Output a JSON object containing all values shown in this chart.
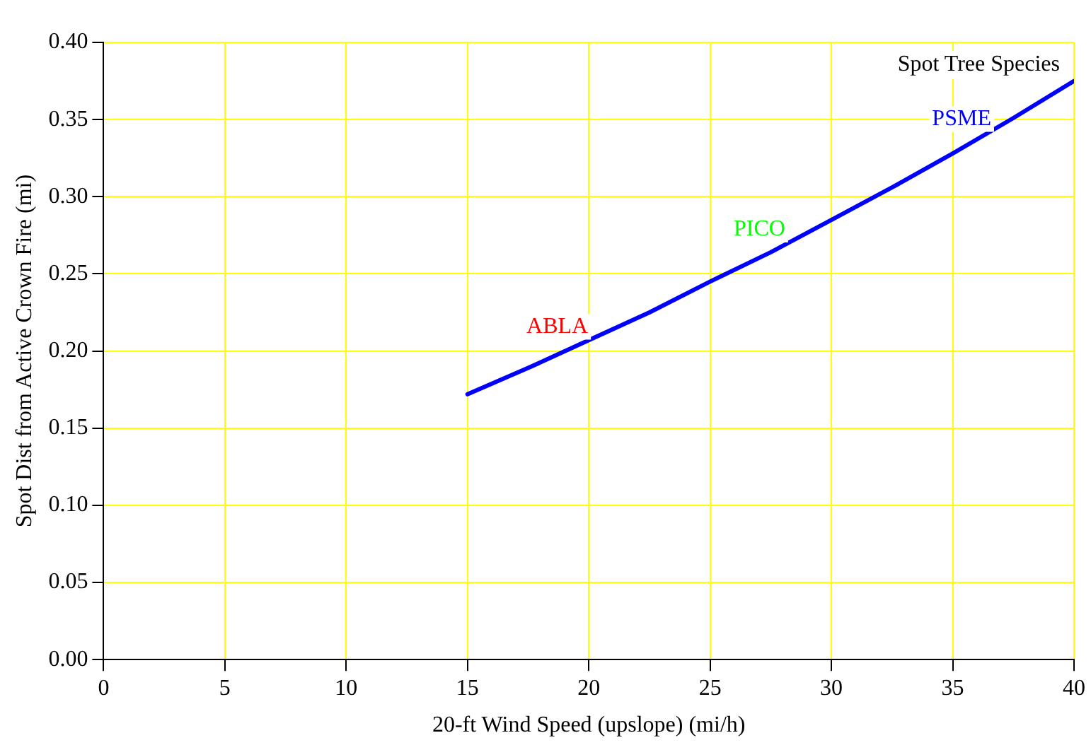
{
  "chart_data": {
    "type": "line",
    "xlabel": "20-ft Wind Speed (upslope) (mi/h)",
    "ylabel": "Spot Dist from Active Crown Fire (mi)",
    "legend_title": "Spot Tree Species",
    "x": [
      15,
      17.5,
      20,
      22.5,
      25,
      27.5,
      30,
      32.5,
      35,
      37.5,
      40
    ],
    "series": [
      {
        "name": "ABLA",
        "color": "#ff0000",
        "values": [
          null,
          null,
          null,
          null,
          null,
          null,
          null,
          null,
          null,
          null,
          null
        ]
      },
      {
        "name": "PICO",
        "color": "#00ff00",
        "values": [
          null,
          null,
          null,
          null,
          null,
          null,
          null,
          null,
          null,
          null,
          null
        ]
      },
      {
        "name": "PSME",
        "color": "#0000ff",
        "values": [
          0.172,
          0.189,
          0.207,
          0.225,
          0.245,
          0.264,
          0.285,
          0.306,
          0.328,
          0.351,
          0.375
        ]
      }
    ],
    "xlim": [
      0,
      40
    ],
    "xticks": [
      0,
      5,
      10,
      15,
      20,
      25,
      30,
      35,
      40
    ],
    "ylim": [
      0,
      0.4
    ],
    "yticks": [
      {
        "value": 0,
        "label": "0.00"
      },
      {
        "value": 0.05,
        "label": "0.05"
      },
      {
        "value": 0.1,
        "label": "0.10"
      },
      {
        "value": 0.15,
        "label": "0.15"
      },
      {
        "value": 0.2,
        "label": "0.20"
      },
      {
        "value": 0.25,
        "label": "0.25"
      },
      {
        "value": 0.3,
        "label": "0.30"
      },
      {
        "value": 0.35,
        "label": "0.35"
      },
      {
        "value": 0.4,
        "label": "0.40"
      }
    ],
    "grid": true,
    "marker": "none",
    "line_style": "solid"
  }
}
